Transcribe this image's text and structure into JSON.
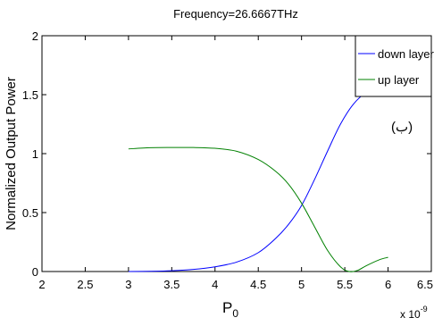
{
  "chart_data": {
    "type": "line",
    "title": "Frequency=26.6667THz",
    "xlabel": "P",
    "xlabel_subscript": "0",
    "ylabel": "Normalized Output Power",
    "x_exponent_label": "x 10",
    "x_exponent_power": "-9",
    "annotation": "(ب)",
    "xlim": [
      2,
      6.5
    ],
    "ylim": [
      0,
      2
    ],
    "x_ticks": [
      "2",
      "2.5",
      "3",
      "3.5",
      "4",
      "4.5",
      "5",
      "5.5",
      "6",
      "6.5"
    ],
    "y_ticks": [
      "0",
      "0.5",
      "1",
      "1.5",
      "2"
    ],
    "grid": false,
    "legend_position": "top-right",
    "series": [
      {
        "name": "down layer",
        "color": "#0000ff",
        "x": [
          3.0,
          3.25,
          3.5,
          3.75,
          4.0,
          4.25,
          4.5,
          4.7,
          4.85,
          5.0,
          5.15,
          5.3,
          5.45,
          5.6,
          5.75,
          5.9,
          6.0
        ],
        "y": [
          0.0,
          0.002,
          0.007,
          0.018,
          0.04,
          0.08,
          0.16,
          0.28,
          0.4,
          0.56,
          0.78,
          1.02,
          1.25,
          1.42,
          1.52,
          1.56,
          1.57
        ]
      },
      {
        "name": "up layer",
        "color": "#008000",
        "x": [
          3.0,
          3.25,
          3.5,
          3.75,
          4.0,
          4.25,
          4.5,
          4.7,
          4.85,
          5.0,
          5.15,
          5.3,
          5.45,
          5.55,
          5.65,
          5.75,
          5.9,
          6.0
        ],
        "y": [
          1.04,
          1.05,
          1.052,
          1.052,
          1.045,
          1.02,
          0.95,
          0.85,
          0.74,
          0.58,
          0.38,
          0.18,
          0.04,
          0.0,
          0.01,
          0.05,
          0.1,
          0.12
        ]
      }
    ]
  }
}
